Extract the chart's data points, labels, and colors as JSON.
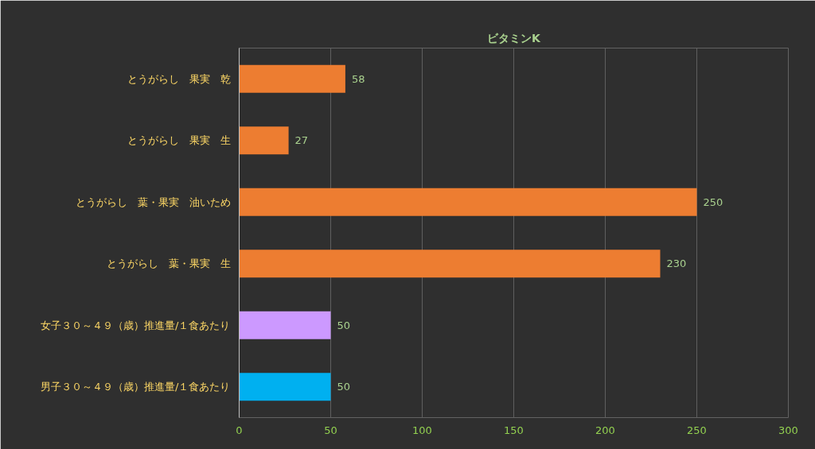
{
  "chart_data": {
    "type": "bar",
    "orientation": "horizontal",
    "title": "ビタミンK",
    "categories": [
      "とうがらし　果実　乾",
      "とうがらし　果実　生",
      "とうがらし　葉・果実　油いため",
      "とうがらし　葉・果実　生",
      "女子３０～４９（歳）推進量/１食あたり",
      "男子３０～４９（歳）推進量/１食あたり"
    ],
    "values": [
      58,
      27,
      250,
      230,
      50,
      50
    ],
    "colors": [
      "#ed7d31",
      "#ed7d31",
      "#ed7d31",
      "#ed7d31",
      "#cc99ff",
      "#00b0f0"
    ],
    "xlim": [
      0,
      300
    ],
    "xticks": [
      0,
      50,
      100,
      150,
      200,
      250,
      300
    ],
    "grid": "x",
    "data_labels": true
  }
}
